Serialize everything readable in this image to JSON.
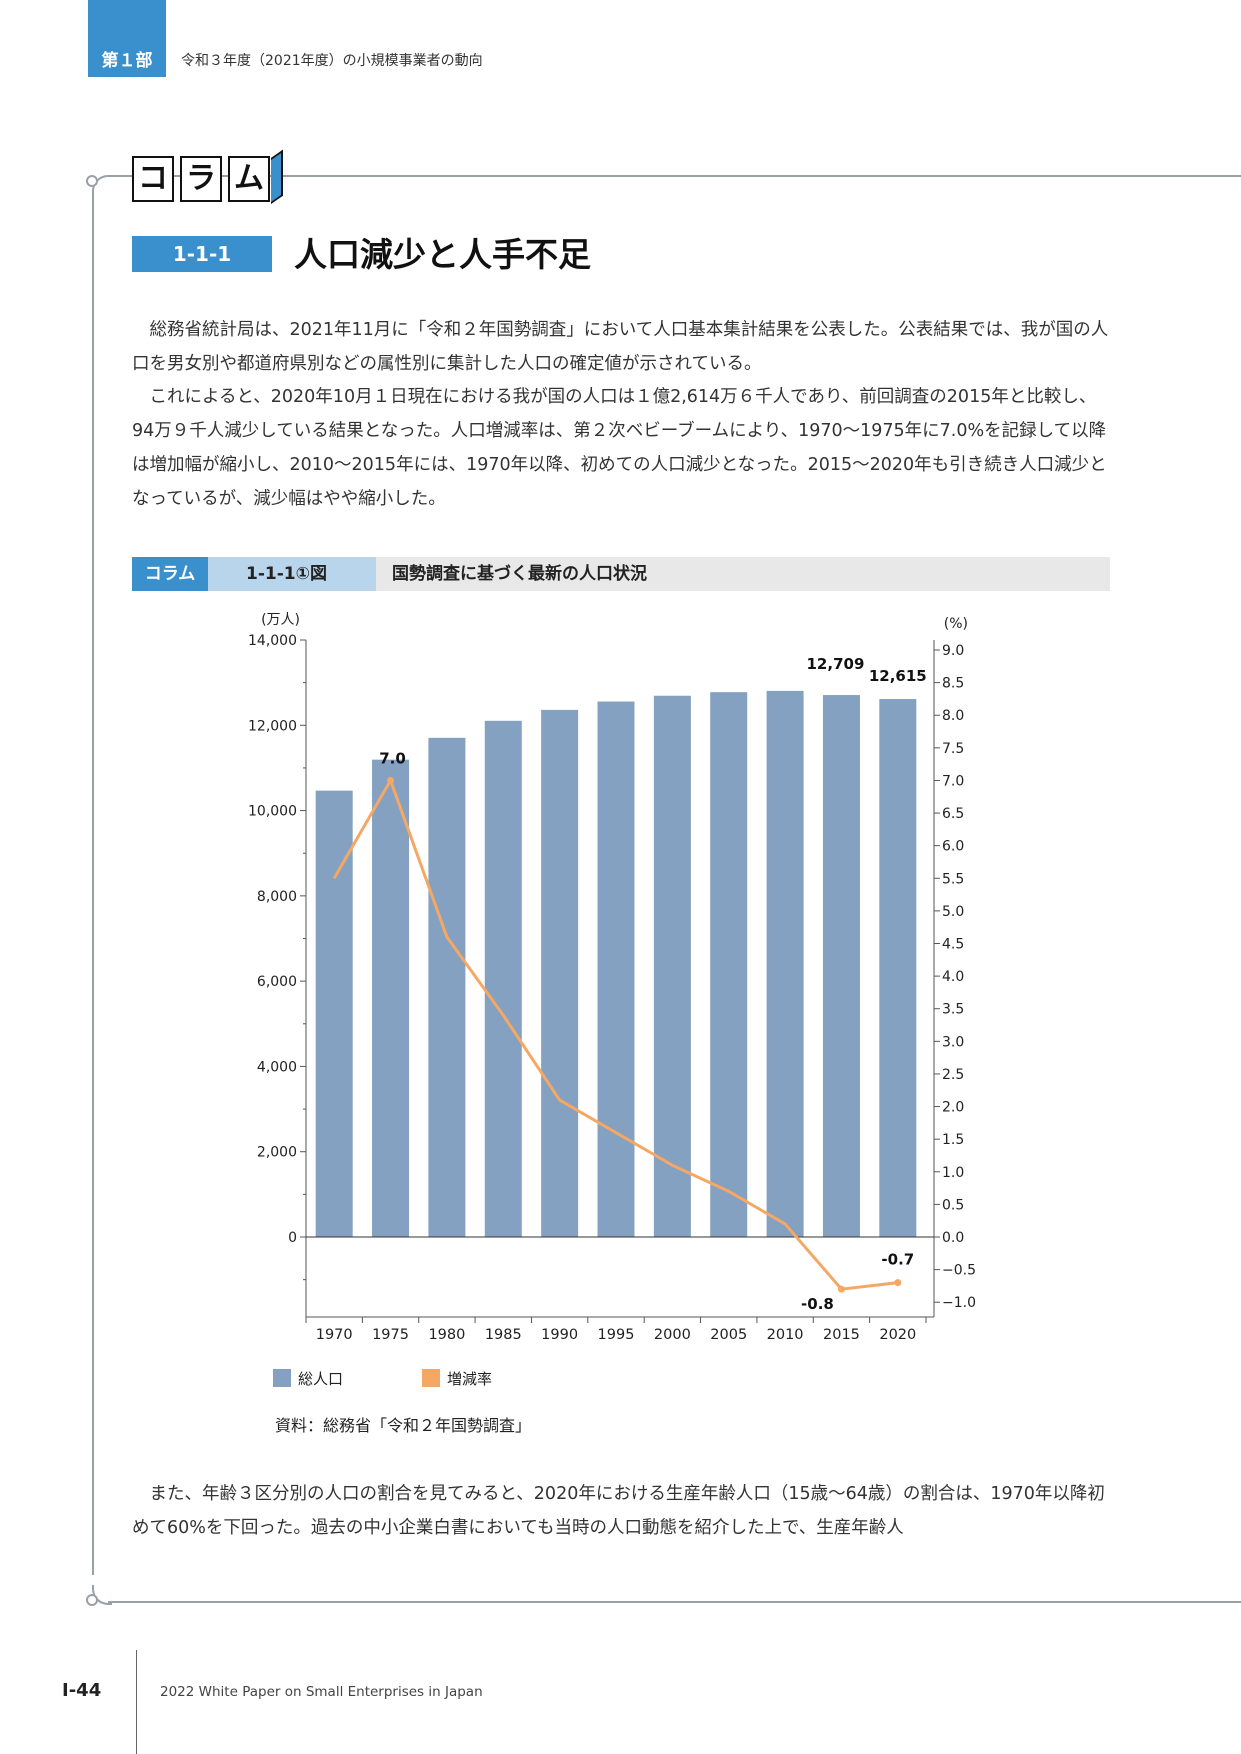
{
  "header": {
    "part_label": "第１部",
    "part_title": "令和３年度（2021年度）の小規模事業者の動向"
  },
  "column": {
    "blocks": [
      "コ",
      "ラ",
      "ム"
    ],
    "number": "1-1-1",
    "title": "人口減少と人手不足"
  },
  "body": {
    "paragraph1": "　総務省統計局は、2021年11月に「令和２年国勢調査」において人口基本集計結果を公表した。公表結果では、我が国の人口を男女別や都道府県別などの属性別に集計した人口の確定値が示されている。",
    "paragraph2": "　これによると、2020年10月１日現在における我が国の人口は１億2,614万６千人であり、前回調査の2015年と比較し、94万９千人減少している結果となった。人口増減率は、第２次ベビーブームにより、1970〜1975年に7.0%を記録して以降は増加幅が縮小し、2010〜2015年には、1970年以降、初めての人口減少となった。2015〜2020年も引き続き人口減少となっているが、減少幅はやや縮小した。",
    "paragraph3": "　また、年齢３区分別の人口の割合を見てみると、2020年における生産年齢人口（15歳〜64歳）の割合は、1970年以降初めて60%を下回った。過去の中小企業白書においても当時の人口動態を紹介した上で、生産年齢人"
  },
  "figure": {
    "tag": "コラム",
    "number": "1-1-1①図",
    "title": "国勢調査に基づく最新の人口状況",
    "source": "資料：総務省「令和２年国勢調査」"
  },
  "chart_data": {
    "type": "bar",
    "categories": [
      "1970",
      "1975",
      "1980",
      "1985",
      "1990",
      "1995",
      "2000",
      "2005",
      "2010",
      "2015",
      "2020"
    ],
    "y_left_unit": "(万人)",
    "y_right_unit": "(%)",
    "ylim_left": [
      -1500,
      14000
    ],
    "ylim_right": [
      -1.0,
      9.0
    ],
    "y_left_ticks": [
      "0",
      "2,000",
      "4,000",
      "6,000",
      "8,000",
      "10,000",
      "12,000",
      "14,000"
    ],
    "y_right_ticks": [
      "-1.0",
      "-0.5",
      "0.0",
      "0.5",
      "1.0",
      "1.5",
      "2.0",
      "2.5",
      "3.0",
      "3.5",
      "4.0",
      "4.5",
      "5.0",
      "5.5",
      "6.0",
      "6.5",
      "7.0",
      "7.5",
      "8.0",
      "8.5",
      "9.0"
    ],
    "series": [
      {
        "name": "総人口",
        "axis": "left",
        "kind": "bar",
        "color": "#84a1c1",
        "values": [
          10467,
          11194,
          11706,
          12105,
          12361,
          12557,
          12693,
          12777,
          12806,
          12709,
          12615
        ]
      },
      {
        "name": "増減率",
        "axis": "right",
        "kind": "line",
        "color": "#f5a864",
        "values": [
          5.5,
          7.0,
          4.6,
          3.4,
          2.1,
          1.6,
          1.1,
          0.7,
          0.2,
          -0.8,
          -0.7
        ]
      }
    ],
    "labels": [
      {
        "series": "総人口",
        "index": 9,
        "text": "12,709"
      },
      {
        "series": "総人口",
        "index": 10,
        "text": "12,615"
      },
      {
        "series": "増減率",
        "index": 1,
        "text": "7.0"
      },
      {
        "series": "増減率",
        "index": 9,
        "text": "-0.8"
      },
      {
        "series": "増減率",
        "index": 10,
        "text": "-0.7"
      }
    ],
    "legend_position": "bottom-left"
  },
  "footer": {
    "page": "I-44",
    "publication": "2022 White Paper on Small Enterprises in Japan"
  }
}
